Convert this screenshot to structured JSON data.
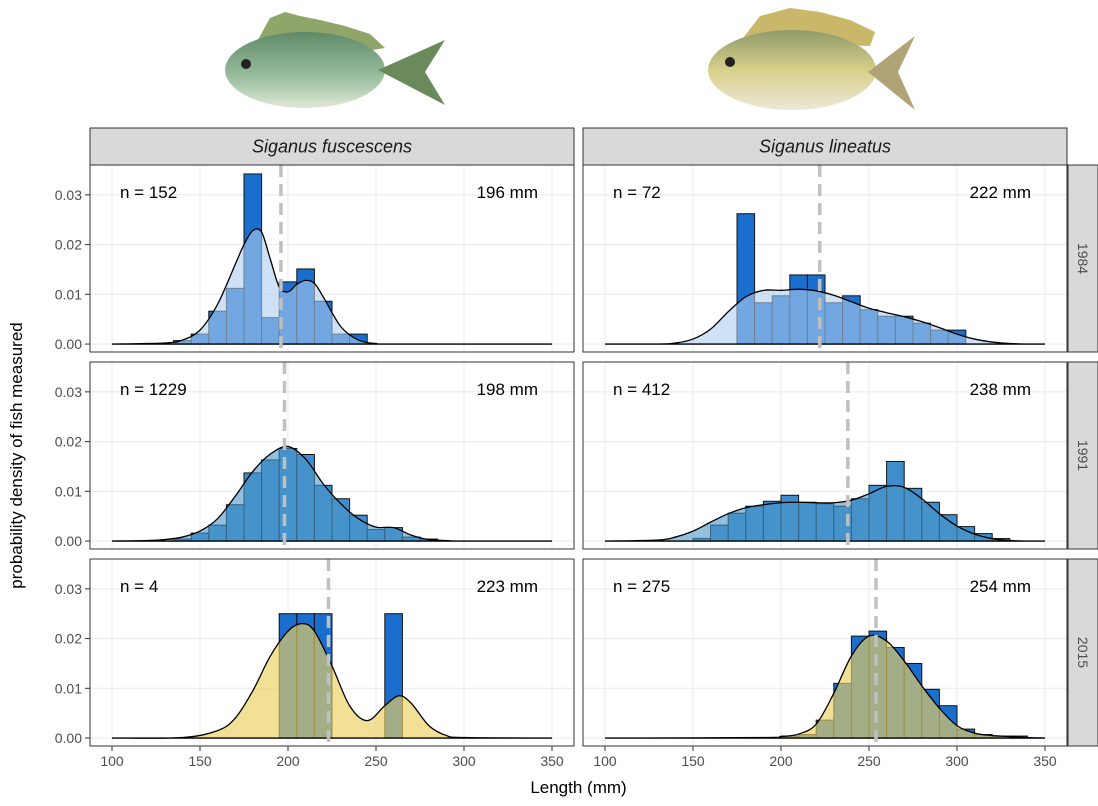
{
  "columns": [
    "Siganus fuscescens",
    "Siganus lineatus"
  ],
  "rows": [
    "1984",
    "1991",
    "2015"
  ],
  "x_label": "Length (mm)",
  "y_label": "probability density of fish measured",
  "axes": {
    "xlim": [
      87.5,
      362.5
    ],
    "xticks": [
      100,
      150,
      200,
      250,
      300,
      350
    ],
    "ylim": [
      -0.0016,
      0.036
    ],
    "yticks": [
      {
        "value": 0,
        "label": "0.00"
      },
      {
        "value": 0.01,
        "label": "0.01"
      },
      {
        "value": 0.02,
        "label": "0.02"
      },
      {
        "value": 0.03,
        "label": "0.03"
      }
    ],
    "grid": true
  },
  "chart_data": [
    {
      "type": "histogram",
      "n_label": "n = 152",
      "mean": 196,
      "mean_label": "196 mm",
      "color": "#1a6fce",
      "density_color": "#aecdee",
      "density_opacity": 0.6,
      "bins": [
        135,
        145,
        155,
        165,
        175,
        185,
        195,
        205,
        215,
        225,
        235,
        245
      ],
      "values": [
        0.0007,
        0.002,
        0.0066,
        0.0112,
        0.0342,
        0.0053,
        0.0125,
        0.0151,
        0.0086,
        0.002,
        0.002
      ],
      "density_x": [
        100,
        130,
        140,
        150,
        160,
        170,
        175,
        180,
        185,
        190,
        195,
        200,
        205,
        210,
        215,
        220,
        230,
        240,
        250,
        260,
        350
      ],
      "density": [
        0,
        0.0002,
        0.0008,
        0.0028,
        0.008,
        0.016,
        0.02,
        0.0228,
        0.0225,
        0.017,
        0.0115,
        0.0105,
        0.012,
        0.0128,
        0.0122,
        0.0095,
        0.0035,
        0.0008,
        0.0001,
        0,
        0
      ]
    },
    {
      "type": "histogram",
      "n_label": "n = 72",
      "mean": 222,
      "mean_label": "222 mm",
      "color": "#1a6fce",
      "density_color": "#aecdee",
      "density_opacity": 0.6,
      "bins": [
        175,
        185,
        195,
        205,
        215,
        225,
        235,
        245,
        255,
        265,
        275,
        285,
        295,
        305
      ],
      "values": [
        0.0262,
        0.0083,
        0.0097,
        0.0139,
        0.0139,
        0.0083,
        0.0097,
        0.0069,
        0.0056,
        0.0056,
        0.0042,
        0.0028,
        0.0028
      ],
      "density_x": [
        100,
        130,
        140,
        150,
        160,
        170,
        180,
        190,
        200,
        210,
        220,
        230,
        240,
        250,
        260,
        270,
        280,
        290,
        300,
        310,
        320,
        330,
        340,
        350
      ],
      "density": [
        0,
        0,
        0.0002,
        0.001,
        0.003,
        0.0065,
        0.0095,
        0.0108,
        0.0108,
        0.011,
        0.0107,
        0.0098,
        0.0085,
        0.0072,
        0.0063,
        0.0055,
        0.0045,
        0.0033,
        0.002,
        0.001,
        0.0004,
        0.0001,
        0,
        0
      ]
    },
    {
      "type": "histogram",
      "n_label": "n = 1229",
      "mean": 198,
      "mean_label": "198 mm",
      "color": "#3e8ecd",
      "density_color": "#4d96c9",
      "density_opacity": 0.6,
      "bins": [
        135,
        145,
        155,
        165,
        175,
        185,
        195,
        205,
        215,
        225,
        235,
        245,
        255,
        265,
        275,
        285
      ],
      "values": [
        0.0004,
        0.0016,
        0.0032,
        0.0073,
        0.0137,
        0.0163,
        0.0186,
        0.0174,
        0.0112,
        0.0085,
        0.0052,
        0.0023,
        0.0027,
        0.0008,
        0.0004
      ],
      "density_x": [
        100,
        120,
        130,
        140,
        150,
        160,
        170,
        180,
        190,
        200,
        210,
        220,
        230,
        240,
        250,
        260,
        270,
        280,
        290,
        300,
        350
      ],
      "density": [
        0,
        0.0001,
        0.0003,
        0.0008,
        0.002,
        0.0045,
        0.009,
        0.014,
        0.0175,
        0.019,
        0.0165,
        0.0115,
        0.0075,
        0.0045,
        0.0028,
        0.0027,
        0.0012,
        0.0003,
        0.0001,
        0,
        0
      ]
    },
    {
      "type": "histogram",
      "n_label": "n = 412",
      "mean": 238,
      "mean_label": "238 mm",
      "color": "#3e8ecd",
      "density_color": "#4d96c9",
      "density_opacity": 0.6,
      "bins": [
        150,
        160,
        170,
        180,
        190,
        200,
        210,
        220,
        230,
        240,
        250,
        260,
        270,
        280,
        290,
        300,
        310,
        320,
        330
      ],
      "values": [
        0.0005,
        0.0032,
        0.0056,
        0.007,
        0.008,
        0.0092,
        0.0078,
        0.0075,
        0.007,
        0.0085,
        0.0112,
        0.016,
        0.0106,
        0.0078,
        0.0053,
        0.0029,
        0.0015,
        0.0005
      ],
      "density_x": [
        100,
        130,
        140,
        150,
        160,
        170,
        180,
        190,
        200,
        210,
        220,
        230,
        240,
        250,
        260,
        270,
        280,
        290,
        300,
        310,
        320,
        330,
        340,
        350
      ],
      "density": [
        0,
        0.0002,
        0.0008,
        0.002,
        0.0038,
        0.0055,
        0.0067,
        0.0073,
        0.0077,
        0.0078,
        0.0077,
        0.0077,
        0.0082,
        0.0095,
        0.011,
        0.0108,
        0.0085,
        0.0055,
        0.003,
        0.0014,
        0.0005,
        0.0001,
        0,
        0
      ]
    },
    {
      "type": "histogram",
      "n_label": "n = 4",
      "mean": 223,
      "mean_label": "223 mm",
      "color": "#1a6fce",
      "density_color": "#ecd060",
      "density_opacity": 0.65,
      "bins": [
        195,
        205,
        215,
        225,
        235,
        245,
        255,
        265
      ],
      "values": [
        0.025,
        0.025,
        0.025,
        0,
        0,
        0,
        0.025
      ],
      "density_x": [
        100,
        140,
        160,
        170,
        180,
        190,
        200,
        208,
        215,
        225,
        235,
        245,
        255,
        263,
        270,
        280,
        290,
        300,
        350
      ],
      "density": [
        0,
        0.0001,
        0.0015,
        0.004,
        0.0095,
        0.0165,
        0.0215,
        0.023,
        0.0215,
        0.0145,
        0.0065,
        0.0035,
        0.0065,
        0.0085,
        0.007,
        0.0025,
        0.0005,
        0.0001,
        0
      ]
    },
    {
      "type": "histogram",
      "n_label": "n = 275",
      "mean": 254,
      "mean_label": "254 mm",
      "color": "#1a6fce",
      "density_color": "#ecd060",
      "density_opacity": 0.65,
      "bins": [
        200,
        210,
        220,
        230,
        240,
        250,
        260,
        270,
        280,
        290,
        300,
        310,
        320,
        330,
        340
      ],
      "values": [
        0.0004,
        0.0007,
        0.0036,
        0.011,
        0.0205,
        0.0215,
        0.0182,
        0.015,
        0.0098,
        0.0065,
        0.0018,
        0.0007,
        0.0004,
        0.0004
      ],
      "density_x": [
        100,
        190,
        200,
        210,
        220,
        230,
        240,
        250,
        260,
        270,
        280,
        290,
        300,
        310,
        320,
        330,
        340,
        350
      ],
      "density": [
        0,
        0.0001,
        0.0003,
        0.0008,
        0.0028,
        0.009,
        0.0165,
        0.0205,
        0.0195,
        0.0155,
        0.0105,
        0.006,
        0.0025,
        0.001,
        0.0005,
        0.0003,
        0.0001,
        0
      ]
    }
  ]
}
